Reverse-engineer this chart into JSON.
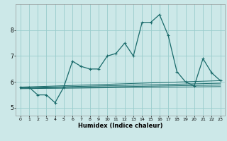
{
  "xlabel": "Humidex (Indice chaleur)",
  "bg_color": "#cce8e8",
  "grid_color": "#99cccc",
  "line_color": "#1a6b6b",
  "xlim": [
    -0.5,
    23.5
  ],
  "ylim": [
    4.7,
    9.0
  ],
  "yticks": [
    5,
    6,
    7,
    8
  ],
  "xticks": [
    0,
    1,
    2,
    3,
    4,
    5,
    6,
    7,
    8,
    9,
    10,
    11,
    12,
    13,
    14,
    15,
    16,
    17,
    18,
    19,
    20,
    21,
    22,
    23
  ],
  "main_series_x": [
    0,
    1,
    2,
    3,
    4,
    5,
    6,
    7,
    8,
    9,
    10,
    11,
    12,
    13,
    14,
    15,
    16,
    17,
    18,
    19,
    20,
    21,
    22,
    23
  ],
  "main_series_y": [
    5.8,
    5.8,
    5.5,
    5.5,
    5.2,
    5.8,
    6.8,
    6.6,
    6.5,
    6.5,
    7.0,
    7.1,
    7.5,
    7.0,
    8.3,
    8.3,
    8.6,
    7.8,
    6.4,
    6.0,
    5.85,
    6.9,
    6.35,
    6.05
  ],
  "flat_line1_x": [
    0,
    23
  ],
  "flat_line1_y": [
    5.8,
    6.05
  ],
  "flat_line2_x": [
    0,
    23
  ],
  "flat_line2_y": [
    5.78,
    5.95
  ],
  "flat_line3_x": [
    0,
    23
  ],
  "flat_line3_y": [
    5.76,
    5.88
  ],
  "flat_line4_x": [
    0,
    23
  ],
  "flat_line4_y": [
    5.74,
    5.82
  ]
}
